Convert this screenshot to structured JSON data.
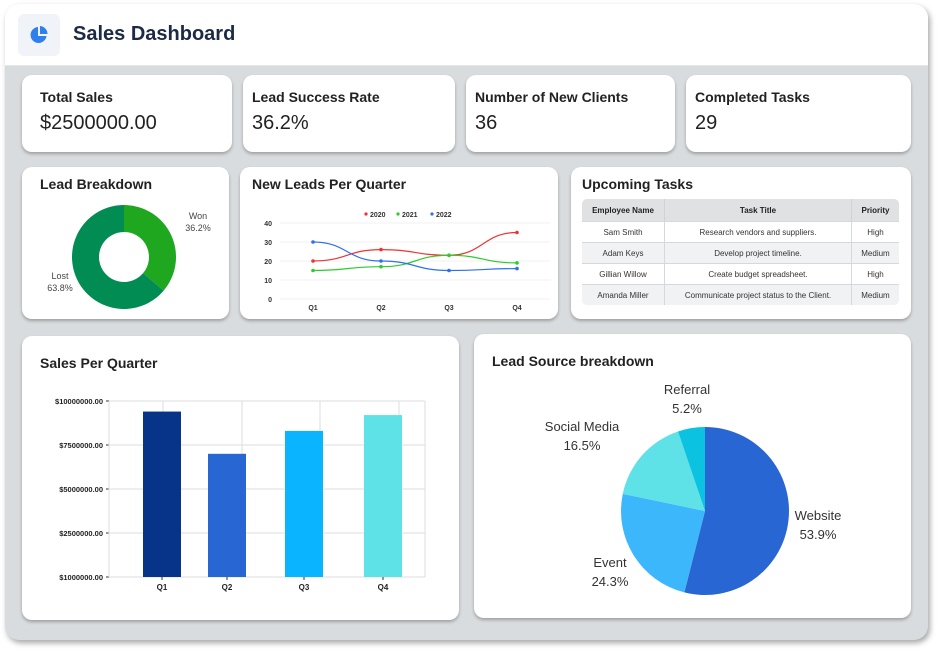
{
  "header": {
    "title": "Sales Dashboard",
    "logo_icon": "pie-chart-icon"
  },
  "kpis": [
    {
      "label": "Total Sales",
      "value": "$2500000.00"
    },
    {
      "label": "Lead Success Rate",
      "value": "36.2%"
    },
    {
      "label": "Number of New Clients",
      "value": "36"
    },
    {
      "label": "Completed Tasks",
      "value": "29"
    }
  ],
  "tasks": {
    "title": "Upcoming Tasks",
    "columns": [
      "Employee Name",
      "Task Title",
      "Priority"
    ],
    "rows": [
      [
        "Sam Smith",
        "Research vendors and suppliers.",
        "High"
      ],
      [
        "Adam Keys",
        "Develop project timeline.",
        "Medium"
      ],
      [
        "Gillian Willow",
        "Create budget spreadsheet.",
        "High"
      ],
      [
        "Amanda Miller",
        "Communicate project status to the Client.",
        "Medium"
      ]
    ]
  },
  "chart_data": [
    {
      "type": "pie",
      "variant": "donut",
      "title": "Lead Breakdown",
      "slices": [
        {
          "label": "Won",
          "value": 36.2,
          "display": "36.2%",
          "color": "#1fa81f"
        },
        {
          "label": "Lost",
          "value": 63.8,
          "display": "63.8%",
          "color": "#008c52"
        }
      ]
    },
    {
      "type": "line",
      "title": "New Leads Per Quarter",
      "categories": [
        "Q1",
        "Q2",
        "Q3",
        "Q4"
      ],
      "ylim": [
        0,
        40
      ],
      "yticks": [
        0,
        10,
        20,
        30,
        40
      ],
      "grid": true,
      "legend": "top",
      "series": [
        {
          "name": "2020",
          "values": [
            20,
            26,
            23,
            35
          ],
          "color": "#f03232"
        },
        {
          "name": "2021",
          "values": [
            15,
            17,
            23,
            19
          ],
          "color": "#2ccc2c"
        },
        {
          "name": "2022",
          "values": [
            30,
            20,
            15,
            16
          ],
          "color": "#2f6ff0"
        }
      ]
    },
    {
      "type": "bar",
      "title": "Sales Per Quarter",
      "categories": [
        "Q1",
        "Q2",
        "Q3",
        "Q4"
      ],
      "values": [
        9400000,
        7000000,
        8300000,
        9200000
      ],
      "colors": [
        "#073389",
        "#2866d4",
        "#0ab4ff",
        "#5ee2e8"
      ],
      "ytick_labels": [
        "$1000000.00",
        "$2500000.00",
        "$5000000.00",
        "$7500000.00",
        "$10000000.00"
      ],
      "ylim": [
        0,
        10000000
      ],
      "grid": true
    },
    {
      "type": "pie",
      "title": "Lead Source breakdown",
      "slices": [
        {
          "label": "Website",
          "value": 53.9,
          "display": "53.9%",
          "color": "#2866d4"
        },
        {
          "label": "Event",
          "value": 24.3,
          "display": "24.3%",
          "color": "#3db7fb"
        },
        {
          "label": "Social Media",
          "value": 16.5,
          "display": "16.5%",
          "color": "#5ee2e8"
        },
        {
          "label": "Referral",
          "value": 5.2,
          "display": "5.2%",
          "color": "#0bc2e1"
        }
      ]
    }
  ]
}
